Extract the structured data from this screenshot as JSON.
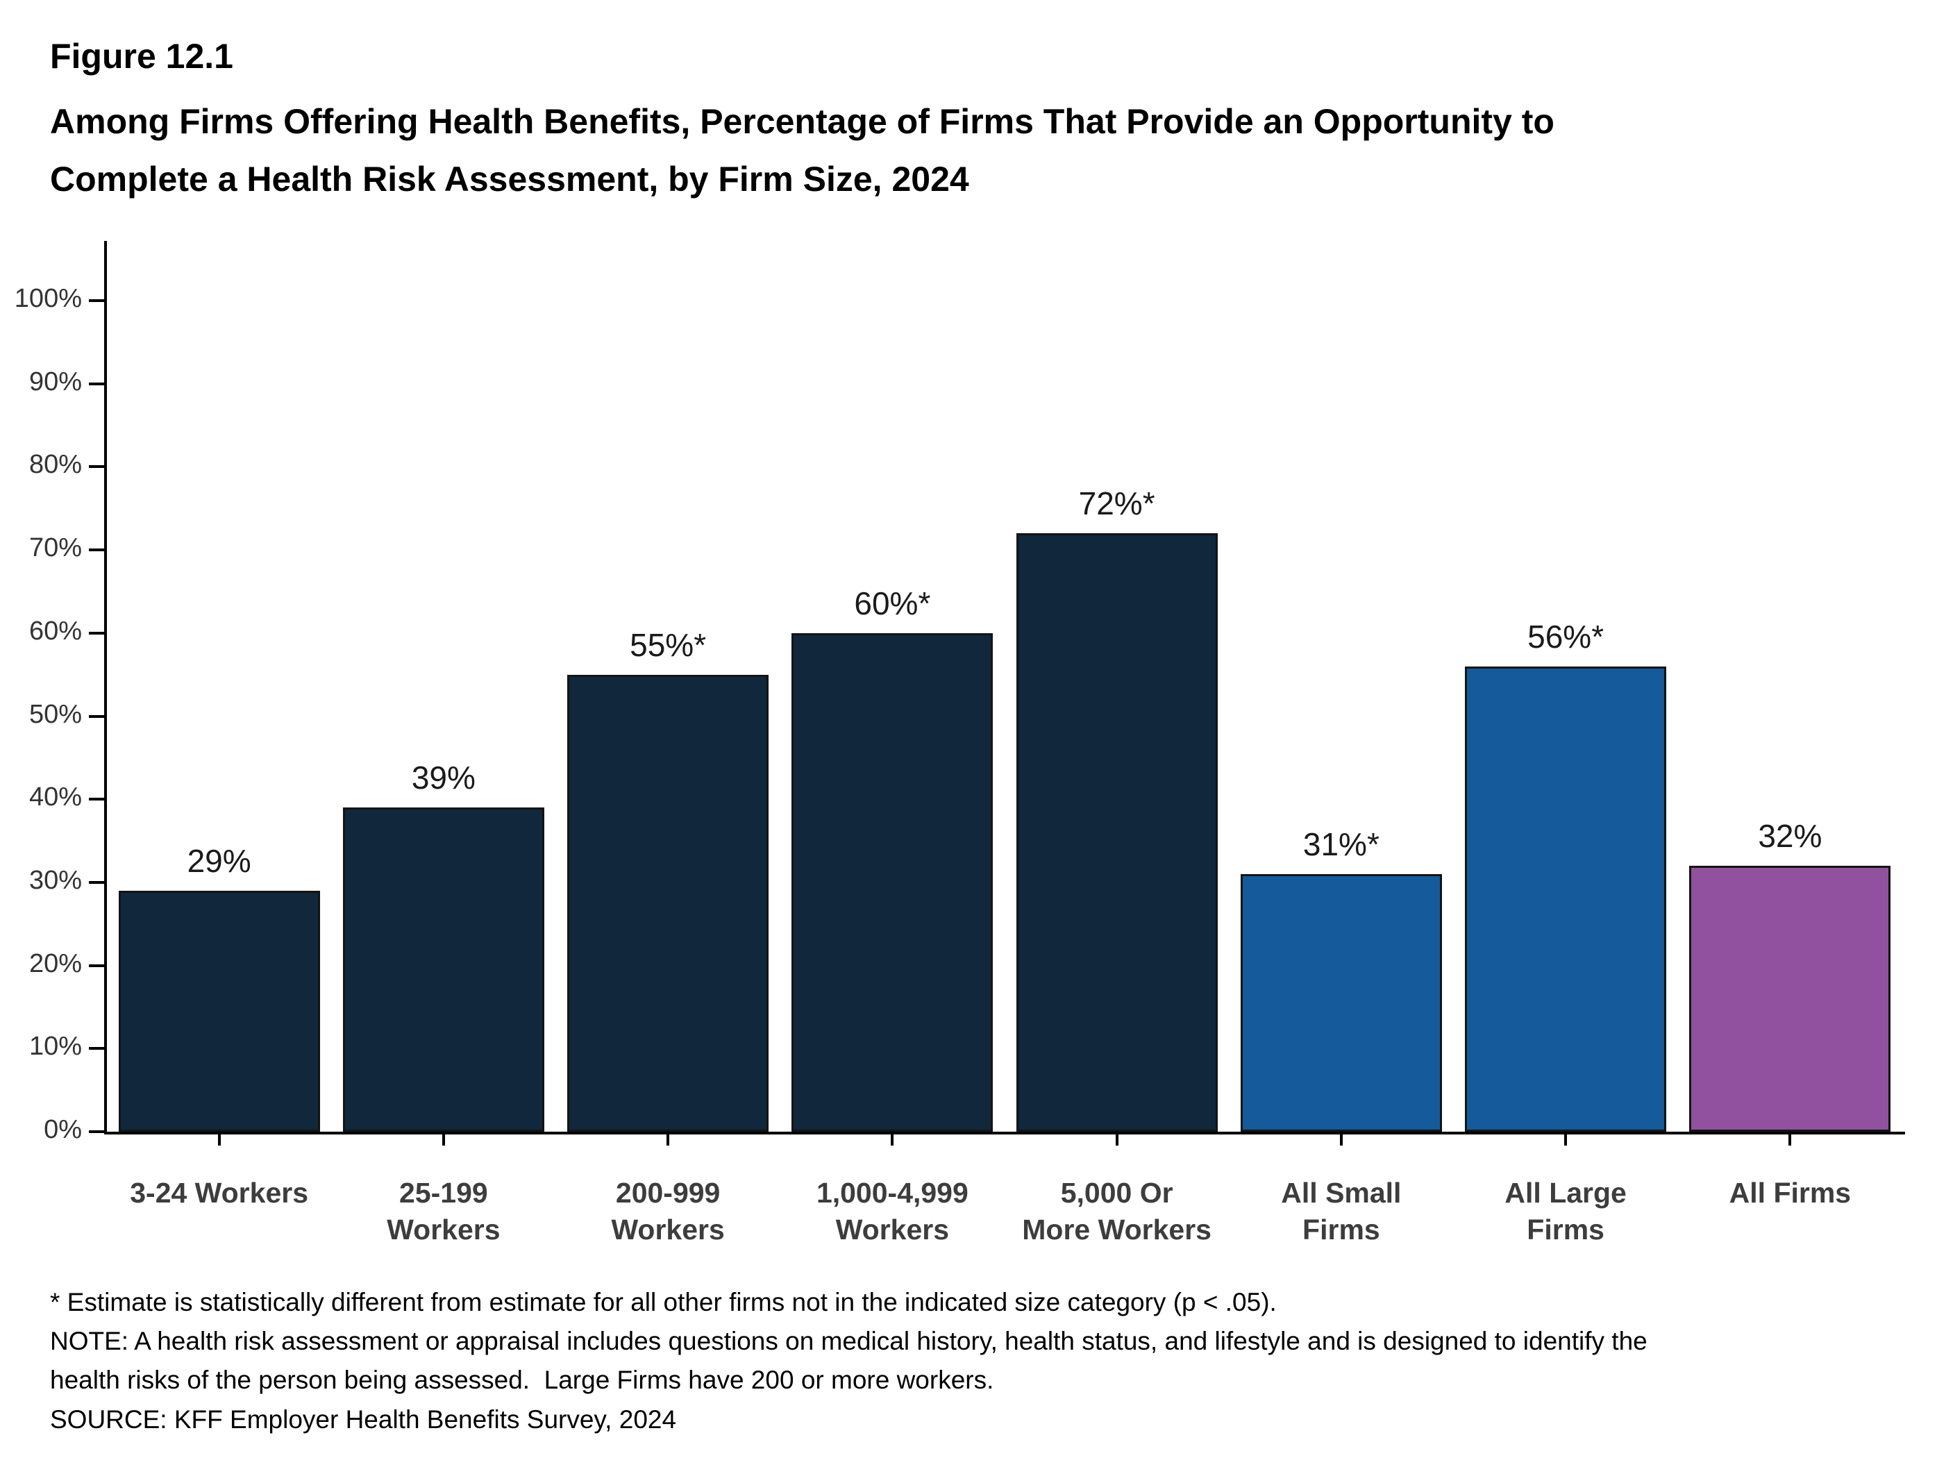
{
  "header": {
    "figure_label": "Figure 12.1",
    "title": "Among Firms Offering Health Benefits, Percentage of Firms That Provide an Opportunity to\nComplete a Health Risk Assessment, by Firm Size, 2024"
  },
  "chart_data": {
    "type": "bar",
    "categories": [
      "3-24 Workers",
      "25-199\nWorkers",
      "200-999\nWorkers",
      "1,000-4,999\nWorkers",
      "5,000 Or\nMore Workers",
      "All Small\nFirms",
      "All Large\nFirms",
      "All Firms"
    ],
    "values": [
      29,
      39,
      55,
      60,
      72,
      31,
      56,
      32
    ],
    "data_labels": [
      "29%",
      "39%",
      "55%*",
      "60%*",
      "72%*",
      "31%*",
      "56%*",
      "32%"
    ],
    "bar_colors": [
      "#10273c",
      "#10273c",
      "#10273c",
      "#10273c",
      "#10273c",
      "#155a9b",
      "#155a9b",
      "#92519e"
    ],
    "ylim": [
      0,
      100
    ],
    "ytick_labels": [
      "0%",
      "10%",
      "20%",
      "30%",
      "40%",
      "50%",
      "60%",
      "70%",
      "80%",
      "90%",
      "100%"
    ],
    "grid": false,
    "legend": "none",
    "xlabel": "",
    "ylabel": ""
  },
  "colors": {
    "dark_navy": "#10273c",
    "medium_blue": "#155a9b",
    "purple": "#92519e",
    "axis": "#000000",
    "x_label_text": "#3d3d3d"
  },
  "footnotes": {
    "lines": [
      "* Estimate is statistically different from estimate for all other firms not in the indicated size category (p < .05).",
      "NOTE: A health risk assessment or appraisal includes questions on medical history, health status, and lifestyle and is designed to identify the",
      "health risks of the person being assessed.  Large Firms have 200 or more workers.",
      "SOURCE: KFF Employer Health Benefits Survey, 2024"
    ]
  }
}
